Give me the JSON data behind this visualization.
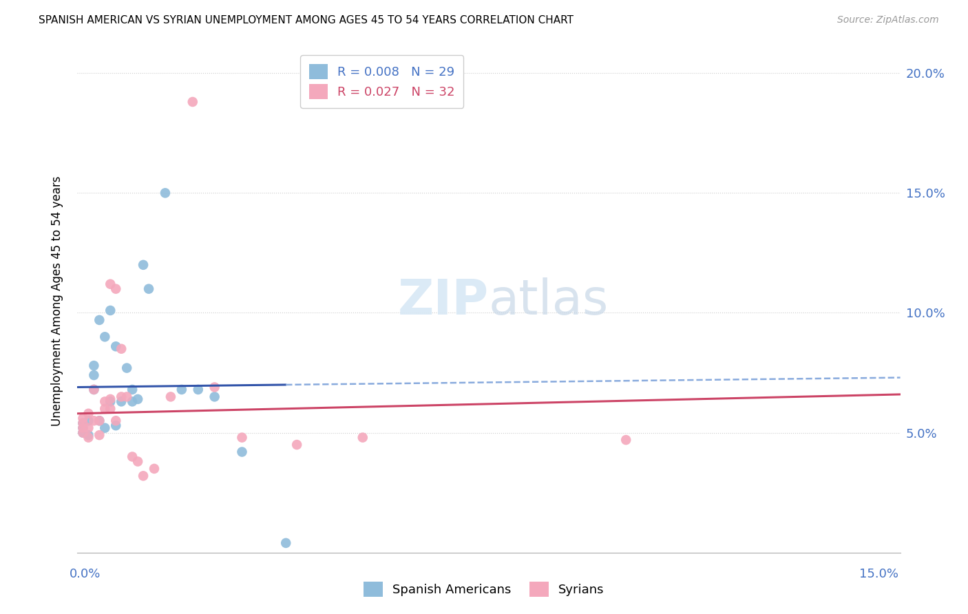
{
  "title": "SPANISH AMERICAN VS SYRIAN UNEMPLOYMENT AMONG AGES 45 TO 54 YEARS CORRELATION CHART",
  "source": "Source: ZipAtlas.com",
  "ylabel": "Unemployment Among Ages 45 to 54 years",
  "xlim": [
    0.0,
    0.15
  ],
  "ylim": [
    0.0,
    0.21
  ],
  "yticks": [
    0.05,
    0.1,
    0.15,
    0.2
  ],
  "ytick_labels": [
    "5.0%",
    "10.0%",
    "15.0%",
    "20.0%"
  ],
  "legend_blue_r": "0.008",
  "legend_blue_n": "29",
  "legend_pink_r": "0.027",
  "legend_pink_n": "32",
  "blue_color": "#8FBCDB",
  "pink_color": "#F4A8BC",
  "blue_line_color": "#3355AA",
  "pink_line_color": "#CC4466",
  "watermark_color": "#D8E8F5",
  "spanish_x": [
    0.001,
    0.001,
    0.001,
    0.002,
    0.002,
    0.003,
    0.003,
    0.003,
    0.004,
    0.004,
    0.005,
    0.005,
    0.006,
    0.006,
    0.007,
    0.007,
    0.008,
    0.009,
    0.01,
    0.01,
    0.011,
    0.012,
    0.013,
    0.016,
    0.019,
    0.022,
    0.025,
    0.03,
    0.038
  ],
  "spanish_y": [
    0.05,
    0.052,
    0.054,
    0.049,
    0.055,
    0.068,
    0.074,
    0.078,
    0.055,
    0.097,
    0.052,
    0.09,
    0.063,
    0.101,
    0.053,
    0.086,
    0.063,
    0.077,
    0.068,
    0.063,
    0.064,
    0.12,
    0.11,
    0.15,
    0.068,
    0.068,
    0.065,
    0.042,
    0.004
  ],
  "syrian_x": [
    0.001,
    0.001,
    0.001,
    0.001,
    0.002,
    0.002,
    0.002,
    0.003,
    0.003,
    0.004,
    0.004,
    0.005,
    0.005,
    0.006,
    0.006,
    0.006,
    0.007,
    0.007,
    0.008,
    0.008,
    0.009,
    0.01,
    0.011,
    0.012,
    0.014,
    0.017,
    0.021,
    0.025,
    0.03,
    0.04,
    0.052,
    0.1
  ],
  "syrian_y": [
    0.05,
    0.052,
    0.054,
    0.056,
    0.048,
    0.052,
    0.058,
    0.055,
    0.068,
    0.049,
    0.055,
    0.06,
    0.063,
    0.06,
    0.064,
    0.112,
    0.055,
    0.11,
    0.085,
    0.065,
    0.065,
    0.04,
    0.038,
    0.032,
    0.035,
    0.065,
    0.188,
    0.069,
    0.048,
    0.045,
    0.048,
    0.047
  ],
  "blue_trend_x0": 0.0,
  "blue_trend_x1": 0.15,
  "blue_trend_y0": 0.069,
  "blue_trend_y1": 0.073,
  "blue_solid_xend": 0.038,
  "pink_trend_y0": 0.058,
  "pink_trend_y1": 0.066
}
